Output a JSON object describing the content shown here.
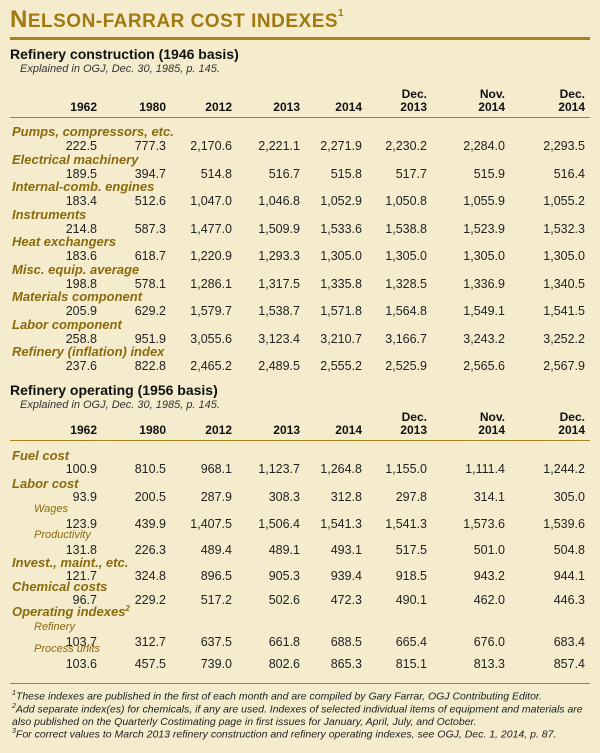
{
  "title": {
    "first": "N",
    "rest": "elson-farrar cost indexes",
    "sup": "1"
  },
  "columns": [
    {
      "lines": [
        "1962"
      ]
    },
    {
      "lines": [
        "1980"
      ]
    },
    {
      "lines": [
        "2012"
      ]
    },
    {
      "lines": [
        "2013"
      ]
    },
    {
      "lines": [
        "2014"
      ]
    },
    {
      "lines": [
        "Dec.",
        "2013"
      ]
    },
    {
      "lines": [
        "Nov.",
        "2014"
      ]
    },
    {
      "lines": [
        "Dec.",
        "2014"
      ]
    }
  ],
  "construction": {
    "title": "Refinery construction (1946 basis)",
    "subtitle": "Explained in OGJ, Dec. 30, 1985, p. 145.",
    "rows": [
      {
        "label": "Pumps, compressors, etc.",
        "values": [
          "222.5",
          "777.3",
          "2,170.6",
          "2,221.1",
          "2,271.9",
          "2,230.2",
          "2,284.0",
          "2,293.5"
        ]
      },
      {
        "label": "Electrical machinery",
        "values": [
          "189.5",
          "394.7",
          "514.8",
          "516.7",
          "515.8",
          "517.7",
          "515.9",
          "516.4"
        ]
      },
      {
        "label": "Internal-comb. engines",
        "values": [
          "183.4",
          "512.6",
          "1,047.0",
          "1,046.8",
          "1,052.9",
          "1,050.8",
          "1,055.9",
          "1,055.2"
        ]
      },
      {
        "label": "Instruments",
        "values": [
          "214.8",
          "587.3",
          "1,477.0",
          "1,509.9",
          "1,533.6",
          "1,538.8",
          "1,523.9",
          "1,532.3"
        ]
      },
      {
        "label": "Heat exchangers",
        "values": [
          "183.6",
          "618.7",
          "1,220.9",
          "1,293.3",
          "1,305.0",
          "1,305.0",
          "1,305.0",
          "1,305.0"
        ]
      },
      {
        "label": "Misc. equip. average",
        "values": [
          "198.8",
          "578.1",
          "1,286.1",
          "1,317.5",
          "1,335.8",
          "1,328.5",
          "1,336.9",
          "1,340.5"
        ]
      },
      {
        "label": "Materials component",
        "values": [
          "205.9",
          "629.2",
          "1,579.7",
          "1,538.7",
          "1,571.8",
          "1,564.8",
          "1,549.1",
          "1,541.5"
        ]
      },
      {
        "label": "Labor component",
        "values": [
          "258.8",
          "951.9",
          "3,055.6",
          "3,123.4",
          "3,210.7",
          "3,166.7",
          "3,243.2",
          "3,252.2"
        ]
      },
      {
        "label": "Refinery (inflation) index",
        "values": [
          "237.6",
          "822.8",
          "2,465.2",
          "2,489.5",
          "2,555.2",
          "2,525.9",
          "2,565.6",
          "2,567.9"
        ]
      }
    ]
  },
  "operating": {
    "title": "Refinery operating (1956 basis)",
    "subtitle": "Explained in OGJ, Dec. 30, 1985, p. 145.",
    "rows": [
      {
        "label": "Fuel cost",
        "kind": "main",
        "values": [
          "100.9",
          "810.5",
          "968.1",
          "1,123.7",
          "1,264.8",
          "1,155.0",
          "1,111.4",
          "1,244.2"
        ]
      },
      {
        "label": "Labor cost",
        "kind": "main",
        "values": [
          "93.9",
          "200.5",
          "287.9",
          "308.3",
          "312.8",
          "297.8",
          "314.1",
          "305.0"
        ]
      },
      {
        "label": "Wages",
        "kind": "sub",
        "values": [
          "123.9",
          "439.9",
          "1,407.5",
          "1,506.4",
          "1,541.3",
          "1,541.3",
          "1,573.6",
          "1,539.6"
        ]
      },
      {
        "label": "Productivity",
        "kind": "sub",
        "values": [
          "131.8",
          "226.3",
          "489.4",
          "489.1",
          "493.1",
          "517.5",
          "501.0",
          "504.8"
        ]
      },
      {
        "label": "Invest., maint., etc.",
        "kind": "main",
        "values": [
          "121.7",
          "324.8",
          "896.5",
          "905.3",
          "939.4",
          "918.5",
          "943.2",
          "944.1"
        ]
      },
      {
        "label": "Chemical costs",
        "kind": "main",
        "values": [
          "96.7",
          "229.2",
          "517.2",
          "502.6",
          "472.3",
          "490.1",
          "462.0",
          "446.3"
        ]
      },
      {
        "label": "Operating indexes",
        "sup": "2",
        "kind": "main",
        "values": null
      },
      {
        "label": "Refinery",
        "kind": "sub",
        "values": [
          "103.7",
          "312.7",
          "637.5",
          "661.8",
          "688.5",
          "665.4",
          "676.0",
          "683.4"
        ]
      },
      {
        "label": "Process units",
        "kind": "sub",
        "values": [
          "103.6",
          "457.5",
          "739.0",
          "802.6",
          "865.3",
          "815.1",
          "813.3",
          "857.4"
        ]
      }
    ]
  },
  "footnotes": [
    {
      "mark": "1",
      "text": "These indexes are published in the first of each month and are compiled by Gary Farrar, OGJ Contributing Editor."
    },
    {
      "mark": "2",
      "text": "Add separate index(es) for chemicals, if any are used. Indexes of selected individual items of equipment and materials are also published on the Quarterly Costimating page in first issues for January, April, July, and October."
    },
    {
      "mark": "3",
      "text": "For correct values to March 2013 refinery construction and refinery operating indexes, see OGJ, Dec. 1, 2014, p. 87."
    }
  ],
  "colors": {
    "background": "#f4eccd",
    "accent": "#a07a10",
    "label": "#8a6a0c"
  }
}
